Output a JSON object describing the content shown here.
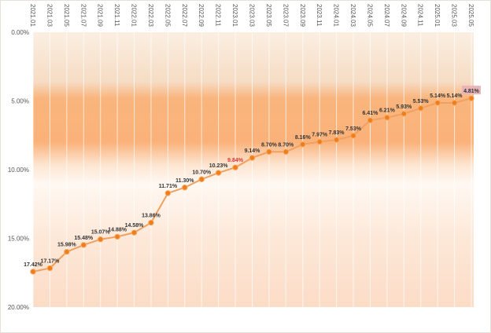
{
  "chart_data": {
    "type": "line",
    "categories": [
      "2021.01",
      "2021.03",
      "2021.05",
      "2021.07",
      "2021.09",
      "2021.11",
      "2022.01",
      "2022.03",
      "2022.05",
      "2022.07",
      "2022.09",
      "2022.11",
      "2023.01",
      "2023.03",
      "2023.05",
      "2023.07",
      "2023.09",
      "2023.11",
      "2024.01",
      "2024.03",
      "2024.05",
      "2024.07",
      "2024.09",
      "2024.11",
      "2025.01",
      "2025.03",
      "2025.05"
    ],
    "values": [
      17.42,
      17.17,
      15.98,
      15.48,
      15.07,
      14.88,
      14.58,
      13.86,
      11.71,
      11.3,
      10.7,
      10.23,
      9.84,
      9.14,
      8.7,
      8.7,
      8.16,
      7.97,
      7.83,
      7.53,
      6.41,
      6.21,
      5.93,
      5.53,
      5.14,
      5.14,
      4.81
    ],
    "data_labels": [
      "17.42%",
      "17.17%",
      "15.98%",
      "15.48%",
      "15.07%",
      "14.88%",
      "14.58%",
      "13.86%",
      "11.71%",
      "11.30%",
      "10.70%",
      "10.23%",
      "9.84%",
      "9.14%",
      "8.70%",
      "8.70%",
      "8.16%",
      "7.97%",
      "7.83%",
      "7.53%",
      "6.41%",
      "6.21%",
      "5.93%",
      "5.53%",
      "5.14%",
      "5.14%",
      "4.81%"
    ],
    "y_ticks": [
      "0.00%",
      "5.00%",
      "10.00%",
      "15.00%",
      "20.00%"
    ],
    "ylim": [
      0,
      20
    ],
    "y_inverted": true,
    "grid": "vertical",
    "colors": {
      "line": "#f0a060",
      "marker": "#ee7d1a",
      "highlight_label": "#e03030",
      "band": "#f9b47a",
      "last_label_bg": "#e8b4b8"
    },
    "highlighted_indices": [
      12
    ],
    "boxed_indices": [
      26
    ]
  }
}
